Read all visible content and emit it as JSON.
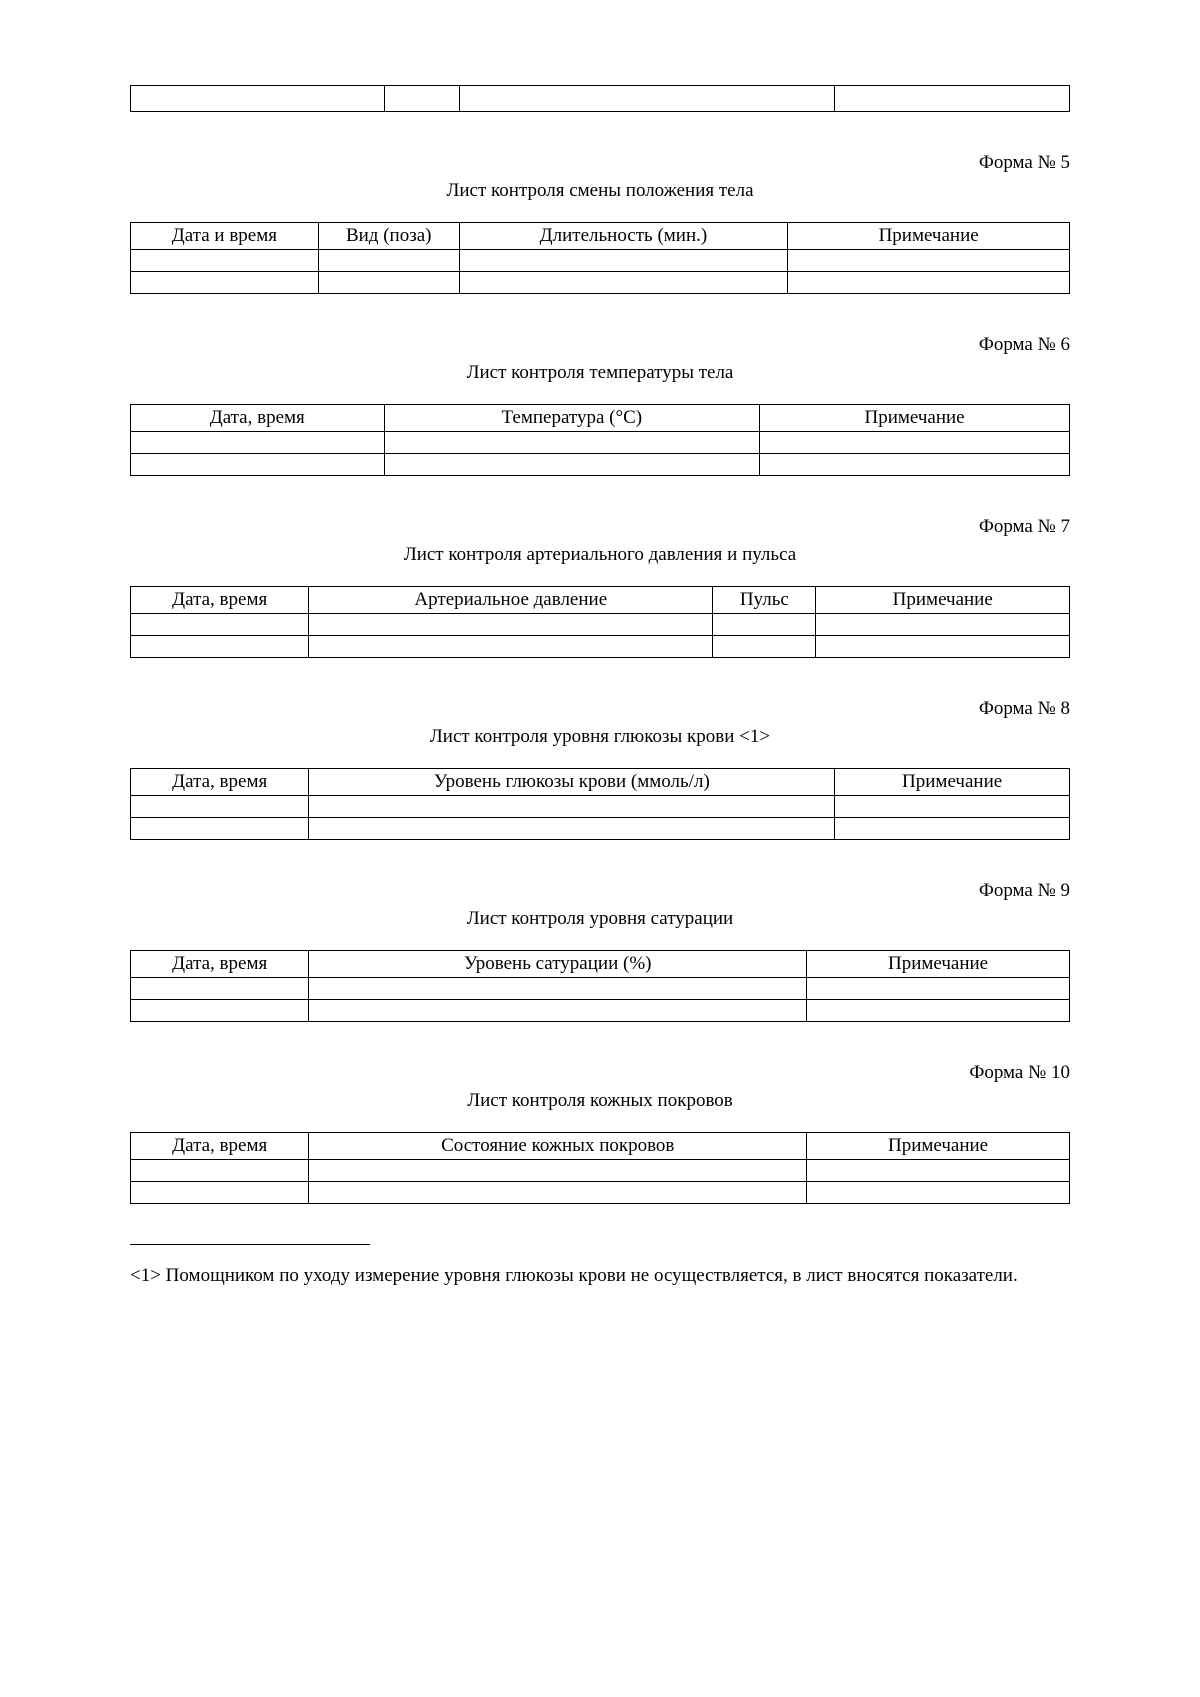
{
  "stub": {
    "col_widths_pct": [
      27,
      8,
      40,
      25
    ]
  },
  "form5": {
    "form_label": "Форма № 5",
    "title": "Лист контроля смены положения тела",
    "columns": [
      {
        "label": "Дата и время",
        "width_pct": 20
      },
      {
        "label": "Вид (поза)",
        "width_pct": 15
      },
      {
        "label": "Длительность (мин.)",
        "width_pct": 35
      },
      {
        "label": "Примечание",
        "width_pct": 30
      }
    ],
    "blank_rows": 2
  },
  "form6": {
    "form_label": "Форма № 6",
    "title": "Лист контроля температуры тела",
    "columns": [
      {
        "label": "Дата, время",
        "width_pct": 27
      },
      {
        "label": "Температура (°C)",
        "width_pct": 40
      },
      {
        "label": "Примечание",
        "width_pct": 33
      }
    ],
    "blank_rows": 2
  },
  "form7": {
    "form_label": "Форма № 7",
    "title": "Лист контроля артериального давления и пульса",
    "columns": [
      {
        "label": "Дата, время",
        "width_pct": 19
      },
      {
        "label": "Артериальное давление",
        "width_pct": 43
      },
      {
        "label": "Пульс",
        "width_pct": 11
      },
      {
        "label": "Примечание",
        "width_pct": 27
      }
    ],
    "blank_rows": 2
  },
  "form8": {
    "form_label": "Форма № 8",
    "title": "Лист контроля уровня глюкозы крови <1>",
    "columns": [
      {
        "label": "Дата, время",
        "width_pct": 19
      },
      {
        "label": "Уровень глюкозы крови (ммоль/л)",
        "width_pct": 56
      },
      {
        "label": "Примечание",
        "width_pct": 25
      }
    ],
    "blank_rows": 2
  },
  "form9": {
    "form_label": "Форма № 9",
    "title": "Лист контроля уровня сатурации",
    "columns": [
      {
        "label": "Дата, время",
        "width_pct": 19
      },
      {
        "label": "Уровень сатурации (%)",
        "width_pct": 53
      },
      {
        "label": "Примечание",
        "width_pct": 28
      }
    ],
    "blank_rows": 2
  },
  "form10": {
    "form_label": "Форма № 10",
    "title": "Лист контроля кожных покровов",
    "columns": [
      {
        "label": "Дата, время",
        "width_pct": 19
      },
      {
        "label": "Состояние кожных покровов",
        "width_pct": 53
      },
      {
        "label": "Примечание",
        "width_pct": 28
      }
    ],
    "blank_rows": 2
  },
  "footnote": {
    "text": "<1> Помощником по уходу измерение уровня глюкозы крови не осуществляется, в лист вносятся показатели."
  }
}
